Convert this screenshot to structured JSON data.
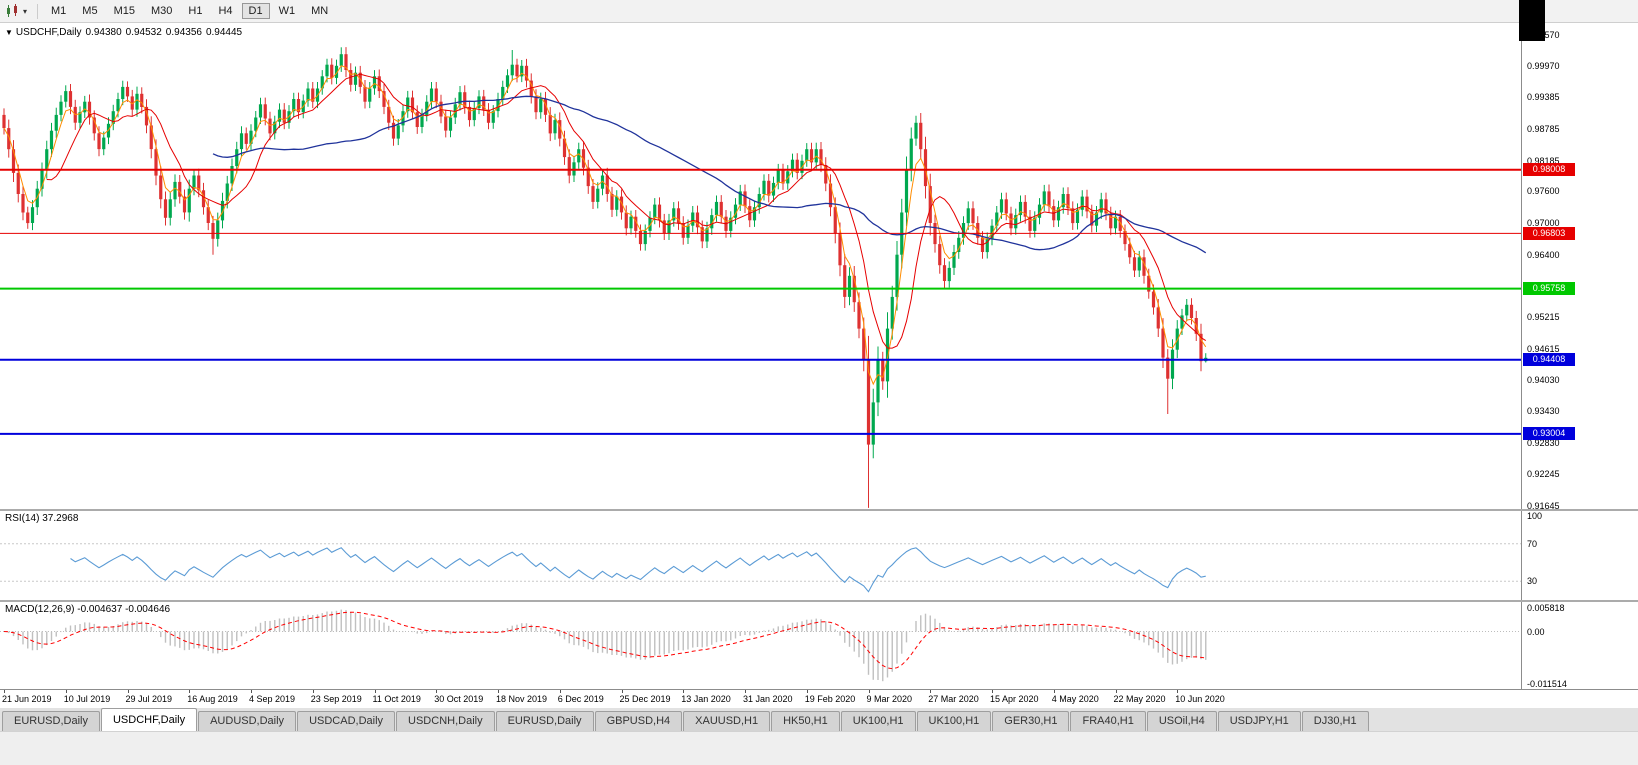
{
  "toolbar": {
    "timeframes": [
      "M1",
      "M5",
      "M15",
      "M30",
      "H1",
      "H4",
      "D1",
      "W1",
      "MN"
    ],
    "active_timeframe": "D1",
    "chart_type_caret": "▾"
  },
  "chart": {
    "header": {
      "collapse_icon": "▼",
      "title": "USDCHF,Daily",
      "open": "0.94380",
      "high": "0.94532",
      "low": "0.94356",
      "close": "0.94445"
    },
    "price_axis_labels": [
      "1.00570",
      "0.99970",
      "0.99385",
      "0.98785",
      "0.98185",
      "0.97600",
      "0.97000",
      "0.96400",
      "0.95800",
      "0.95215",
      "0.94615",
      "0.94030",
      "0.93430",
      "0.92830",
      "0.92245",
      "0.91645"
    ],
    "hlines": [
      {
        "price": 0.98008,
        "label": "0.98008",
        "color": "#e60000",
        "width": 2
      },
      {
        "price": 0.96803,
        "label": "0.96803",
        "color": "#e60000",
        "width": 1
      },
      {
        "price": 0.95758,
        "label": "0.95758",
        "color": "#00c800",
        "width": 2
      },
      {
        "price": 0.94408,
        "label": "0.94408",
        "color": "#0000dc",
        "width": 2
      },
      {
        "price": 0.93004,
        "label": "0.93004",
        "color": "#0000dc",
        "width": 2
      }
    ]
  },
  "panels": {
    "rsi": {
      "name": "RSI(14)",
      "value": "37.2968"
    },
    "macd": {
      "name": "MACD(12,26,9)",
      "values": "-0.004637 -0.004646"
    }
  },
  "tabs": [
    {
      "label": "EURUSD,Daily",
      "active": false
    },
    {
      "label": "USDCHF,Daily",
      "active": true
    },
    {
      "label": "AUDUSD,Daily",
      "active": false
    },
    {
      "label": "USDCAD,Daily",
      "active": false
    },
    {
      "label": "USDCNH,Daily",
      "active": false
    },
    {
      "label": "EURUSD,Daily",
      "active": false
    },
    {
      "label": "GBPUSD,H4",
      "active": false
    },
    {
      "label": "XAUUSD,H1",
      "active": false
    },
    {
      "label": "HK50,H1",
      "active": false
    },
    {
      "label": "UK100,H1",
      "active": false
    },
    {
      "label": "UK100,H1",
      "active": false
    },
    {
      "label": "GER30,H1",
      "active": false
    },
    {
      "label": "FRA40,H1",
      "active": false
    },
    {
      "label": "USOil,H4",
      "active": false
    },
    {
      "label": "USDJPY,H1",
      "active": false
    },
    {
      "label": "DJ30,H1",
      "active": false
    }
  ],
  "chart_data": {
    "type": "candlestick",
    "symbol": "USDCHF",
    "timeframe": "Daily",
    "last_ohlc": {
      "open": 0.9438,
      "high": 0.94532,
      "low": 0.94356,
      "close": 0.94445
    },
    "ylim": [
      0.9158,
      1.0081
    ],
    "x_label_every": 13,
    "x_labels": [
      "21 Jun 2019",
      "10 Jul 2019",
      "29 Jul 2019",
      "16 Aug 2019",
      "4 Sep 2019",
      "23 Sep 2019",
      "11 Oct 2019",
      "30 Oct 2019",
      "18 Nov 2019",
      "6 Dec 2019",
      "25 Dec 2019",
      "13 Jan 2020",
      "31 Jan 2020",
      "19 Feb 2020",
      "9 Mar 2020",
      "27 Mar 2020",
      "15 Apr 2020",
      "4 May 2020",
      "22 May 2020",
      "10 Jun 2020"
    ],
    "closes": [
      0.988,
      0.984,
      0.9795,
      0.9755,
      0.972,
      0.97,
      0.973,
      0.9765,
      0.98,
      0.984,
      0.9875,
      0.9905,
      0.993,
      0.995,
      0.992,
      0.989,
      0.991,
      0.993,
      0.99,
      0.987,
      0.984,
      0.9862,
      0.9888,
      0.9912,
      0.9935,
      0.9958,
      0.994,
      0.9915,
      0.9945,
      0.992,
      0.9885,
      0.984,
      0.979,
      0.9745,
      0.971,
      0.9745,
      0.9778,
      0.975,
      0.972,
      0.9765,
      0.979,
      0.9762,
      0.973,
      0.97,
      0.967,
      0.9705,
      0.9742,
      0.9775,
      0.9808,
      0.984,
      0.987,
      0.985,
      0.9875,
      0.99,
      0.9925,
      0.9898,
      0.987,
      0.9892,
      0.9915,
      0.989,
      0.9912,
      0.9935,
      0.991,
      0.9932,
      0.9955,
      0.993,
      0.9955,
      0.9978,
      1.0,
      0.9975,
      0.9998,
      1.002,
      0.999,
      0.9962,
      0.9985,
      0.9958,
      0.993,
      0.9955,
      0.9978,
      0.995,
      0.992,
      0.989,
      0.986,
      0.9885,
      0.9912,
      0.9938,
      0.991,
      0.9882,
      0.9905,
      0.993,
      0.9955,
      0.993,
      0.9902,
      0.9875,
      0.99,
      0.9925,
      0.9948,
      0.992,
      0.9895,
      0.9918,
      0.994,
      0.9915,
      0.989,
      0.9912,
      0.9935,
      0.9958,
      0.998,
      1.0,
      0.9978,
      0.9998,
      0.997,
      0.994,
      0.991,
      0.9935,
      0.9905,
      0.987,
      0.9895,
      0.986,
      0.9825,
      0.979,
      0.9815,
      0.984,
      0.9805,
      0.977,
      0.974,
      0.9765,
      0.979,
      0.9755,
      0.9725,
      0.975,
      0.972,
      0.969,
      0.9712,
      0.9685,
      0.966,
      0.9685,
      0.971,
      0.9735,
      0.9705,
      0.968,
      0.9705,
      0.9728,
      0.97,
      0.9672,
      0.9695,
      0.972,
      0.9692,
      0.9665,
      0.969,
      0.9715,
      0.974,
      0.9712,
      0.9685,
      0.971,
      0.9735,
      0.976,
      0.9732,
      0.9705,
      0.973,
      0.9755,
      0.978,
      0.9752,
      0.9776,
      0.98,
      0.9775,
      0.9798,
      0.982,
      0.9795,
      0.9818,
      0.984,
      0.9815,
      0.984,
      0.981,
      0.9775,
      0.973,
      0.968,
      0.962,
      0.956,
      0.96,
      0.955,
      0.95,
      0.944,
      0.928,
      0.936,
      0.944,
      0.94,
      0.95,
      0.956,
      0.964,
      0.972,
      0.98,
      0.986,
      0.989,
      0.984,
      0.977,
      0.97,
      0.966,
      0.962,
      0.959,
      0.9615,
      0.9645,
      0.9672,
      0.97,
      0.9728,
      0.97,
      0.9672,
      0.9645,
      0.967,
      0.9695,
      0.972,
      0.9745,
      0.9718,
      0.969,
      0.9715,
      0.974,
      0.9712,
      0.9685,
      0.971,
      0.9735,
      0.976,
      0.9732,
      0.9705,
      0.973,
      0.9755,
      0.9728,
      0.97,
      0.9725,
      0.975,
      0.9722,
      0.9695,
      0.972,
      0.9745,
      0.9718,
      0.969,
      0.9712,
      0.9685,
      0.966,
      0.9635,
      0.961,
      0.9635,
      0.96,
      0.957,
      0.954,
      0.95,
      0.9445,
      0.9405,
      0.946,
      0.95,
      0.9525,
      0.9545,
      0.952,
      0.949,
      0.9438,
      0.94445
    ],
    "candle_overrides": {
      "44": {
        "l": 0.964
      },
      "71": {
        "h": 1.0033
      },
      "107": {
        "h": 1.0028
      },
      "182": {
        "l": 0.916
      },
      "245": {
        "l": 0.9338
      },
      "253": {
        "o": 0.9438,
        "h": 0.94532,
        "l": 0.94356
      }
    },
    "style": {
      "up_color": "#00a84f",
      "down_color": "#de3131",
      "background": "#ffffff"
    },
    "moving_averages": [
      {
        "period": 4,
        "method": "ema",
        "color": "#ff8c00",
        "width": 1
      },
      {
        "period": 10,
        "method": "sma",
        "color": "#e60000",
        "width": 1
      },
      {
        "period": 45,
        "method": "sma",
        "color": "#20339b",
        "width": 1.3
      }
    ],
    "indicators": [
      {
        "name": "RSI",
        "params": "14",
        "value_text": "37.2968",
        "color": "#5b9bd5",
        "range": [
          10,
          105
        ],
        "levels": [
          70,
          30
        ],
        "axis_labels": [
          {
            "text": "100",
            "value": 100
          },
          {
            "text": "70",
            "value": 70
          },
          {
            "text": "30",
            "value": 30
          }
        ]
      },
      {
        "name": "MACD",
        "params": "12,26,9",
        "values_text": "-0.004637 -0.004646",
        "hist_color": "#c0c0c0",
        "signal_color": "#ff0000",
        "range": [
          -0.0115,
          0.0059
        ],
        "axis_labels": [
          {
            "text": "0.005818",
            "value": 0.005818
          },
          {
            "text": "0.00",
            "value": 0
          },
          {
            "text": "-0.011514",
            "value": -0.011514
          }
        ]
      }
    ]
  }
}
